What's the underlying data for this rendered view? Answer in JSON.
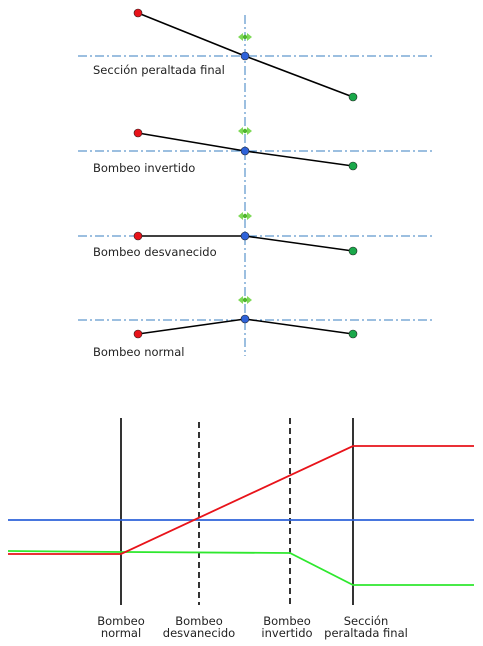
{
  "colors": {
    "left_edge": "#e8131a",
    "center": "#2e62d9",
    "right_edge": "#1aa84a",
    "axis": "#3a7fc0",
    "marker": "#7ed957"
  },
  "sections": [
    {
      "label": "Sección peraltada final"
    },
    {
      "label": "Bombeo invertido"
    },
    {
      "label": "Bombeo desvanecido"
    },
    {
      "label": "Bombeo normal"
    }
  ],
  "stations": [
    {
      "line1": "Bombeo",
      "line2": "normal"
    },
    {
      "line1": "Bombeo",
      "line2": "desvanecido"
    },
    {
      "line1": "Bombeo",
      "line2": "invertido"
    },
    {
      "line1": "Sección",
      "line2": "peraltada final"
    }
  ]
}
